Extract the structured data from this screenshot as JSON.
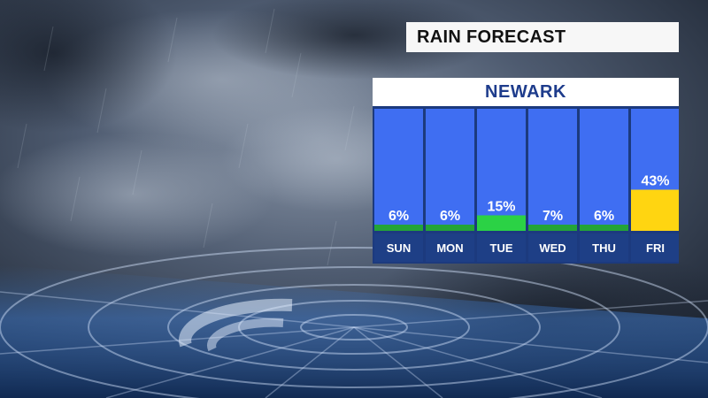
{
  "title": "RAIN FORECAST",
  "location": "NEWARK",
  "colors": {
    "column_bg": "#3f6ef2",
    "panel_bg": "#1c3a7e",
    "low_bar": "#24a437",
    "mid_bar": "#2bd245",
    "high_bar": "#ffd511"
  },
  "chart_data": {
    "type": "bar",
    "title": "RAIN FORECAST",
    "subtitle": "NEWARK",
    "xlabel": "",
    "ylabel": "",
    "ylim": [
      0,
      100
    ],
    "grid": false,
    "categories": [
      "SUN",
      "MON",
      "TUE",
      "WED",
      "THU",
      "FRI"
    ],
    "values": [
      6,
      6,
      15,
      7,
      6,
      43
    ],
    "labels": [
      "6%",
      "6%",
      "15%",
      "7%",
      "6%",
      "43%"
    ]
  }
}
